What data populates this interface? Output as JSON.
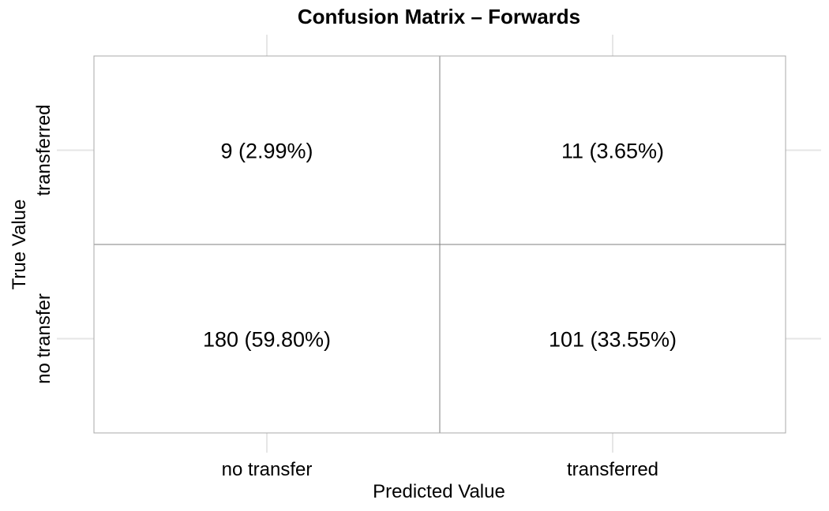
{
  "chart_data": {
    "type": "heatmap",
    "title": "Confusion Matrix – Forwards",
    "xlabel": "Predicted Value",
    "ylabel": "True Value",
    "x_categories": [
      "no transfer",
      "transferred"
    ],
    "y_categories": [
      "no transfer",
      "transferred"
    ],
    "cells": [
      {
        "true": "transferred",
        "predicted": "no transfer",
        "count": 9,
        "label": "9 (2.99%)"
      },
      {
        "true": "transferred",
        "predicted": "transferred",
        "count": 11,
        "label": "11 (3.65%)"
      },
      {
        "true": "no transfer",
        "predicted": "no transfer",
        "count": 180,
        "label": "180 (59.80%)"
      },
      {
        "true": "no transfer",
        "predicted": "transferred",
        "count": 101,
        "label": "101 (33.55%)"
      }
    ],
    "grid": true,
    "legend": "none",
    "colors": {
      "cell_fill": "#ffffff",
      "cell_border": "#7f7f7f",
      "grid": "#e6e6e6",
      "text": "#000000"
    }
  }
}
